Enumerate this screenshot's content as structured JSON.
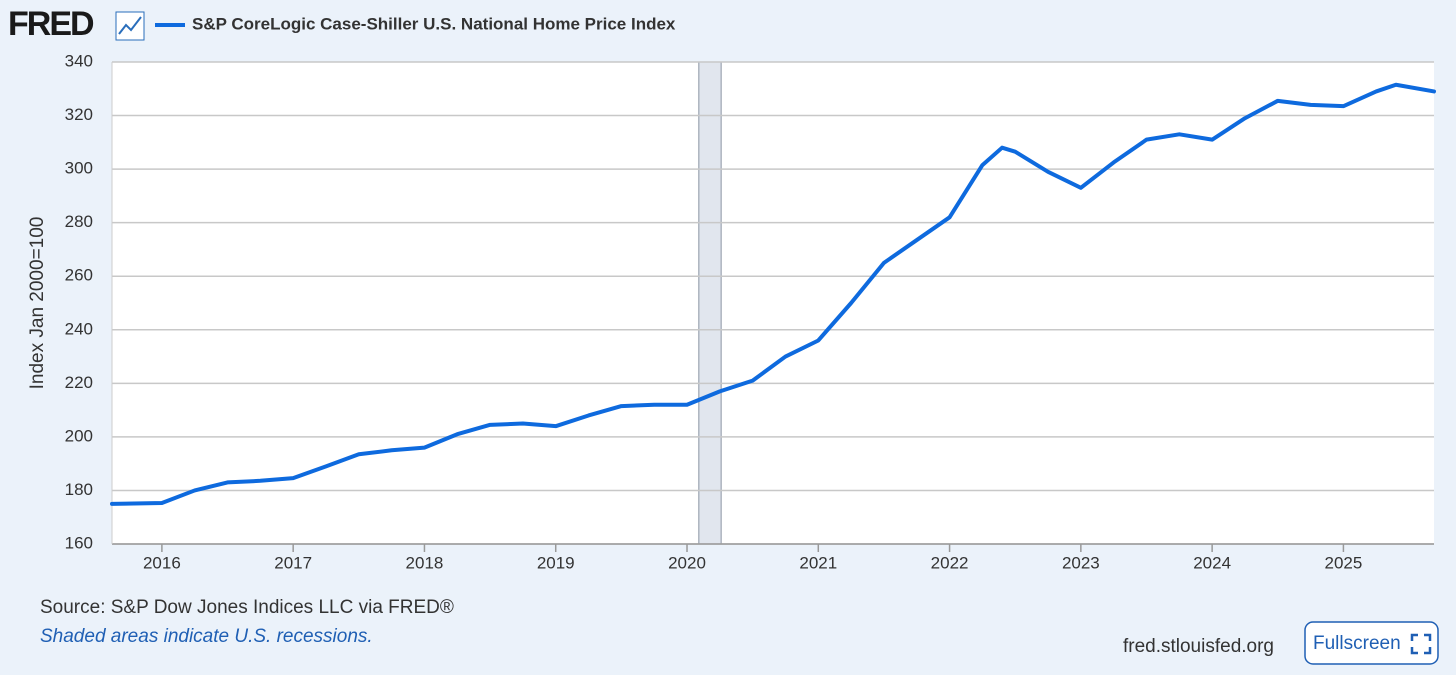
{
  "logo": "FRED",
  "source": "Source: S&P Dow Jones Indices LLC via FRED®",
  "note": "Shaded areas indicate U.S. recessions.",
  "site": "fred.stlouisfed.org",
  "button": "Fullscreen",
  "chart_data": {
    "type": "line",
    "y_label": "Index Jan 2000=100",
    "x": [
      2015.62,
      2016.0,
      2016.25,
      2016.5,
      2016.75,
      2017.0,
      2017.25,
      2017.5,
      2017.75,
      2018.0,
      2018.25,
      2018.5,
      2018.75,
      2019.0,
      2019.25,
      2019.5,
      2019.75,
      2020.0,
      2020.25,
      2020.5,
      2020.75,
      2021.0,
      2021.25,
      2021.5,
      2021.75,
      2022.0,
      2022.25,
      2022.4,
      2022.5,
      2022.75,
      2023.0,
      2023.25,
      2023.5,
      2023.75,
      2024.0,
      2024.25,
      2024.5,
      2024.75,
      2025.0,
      2025.25,
      2025.4,
      2025.69
    ],
    "series": [
      {
        "name": "S&P CoreLogic Case-Shiller U.S. National Home Price Index",
        "color": "#0e6ade",
        "values": [
          175,
          175.3,
          180,
          183,
          183.6,
          184.6,
          189,
          193.5,
          195,
          196,
          201,
          204.5,
          205,
          204,
          208,
          211.5,
          212,
          212,
          217,
          221,
          230,
          236,
          250,
          265,
          273.5,
          282,
          301.5,
          308,
          306.5,
          299,
          293,
          302.5,
          311,
          313,
          311,
          319,
          325.5,
          324,
          323.5,
          329,
          331.5,
          329
        ]
      }
    ],
    "recessions": [
      [
        2020.09,
        2020.26
      ]
    ],
    "recession_color": "#e1e6ee",
    "xlim": [
      2015.62,
      2025.69
    ],
    "xticks": [
      2016,
      2017,
      2018,
      2019,
      2020,
      2021,
      2022,
      2023,
      2024,
      2025
    ],
    "ylim": [
      160,
      340
    ],
    "yticks": [
      160,
      180,
      200,
      220,
      240,
      260,
      280,
      300,
      320,
      340
    ],
    "grid": true
  }
}
